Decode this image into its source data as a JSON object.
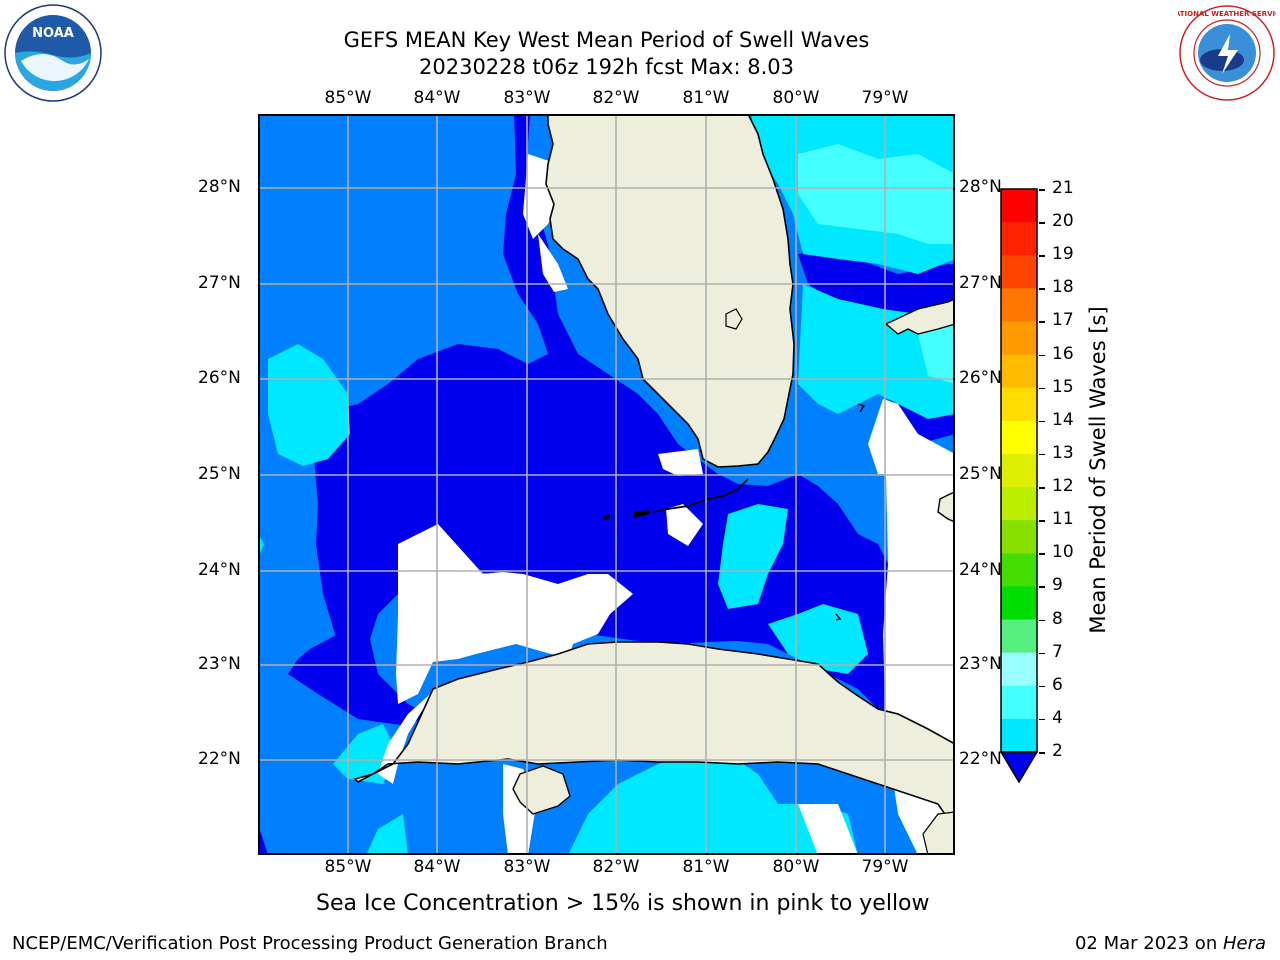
{
  "header": {
    "title_line1": "GEFS MEAN Key West Mean Period of Swell Waves",
    "title_line2": "20230228 t06z 192h fcst   Max: 8.03"
  },
  "logos": {
    "noaa_text": "NOAA",
    "nws_text": "NATIONAL WEATHER SERVICE"
  },
  "map": {
    "lon_labels": [
      "85°W",
      "84°W",
      "83°W",
      "82°W",
      "81°W",
      "80°W",
      "79°W"
    ],
    "lat_labels": [
      "28°N",
      "27°N",
      "26°N",
      "25°N",
      "24°N",
      "23°N",
      "22°N"
    ],
    "land_color": "#eeeedd",
    "grid_color": "#b0b0b0"
  },
  "colorbar": {
    "label": "Mean Period of Swell Waves [s]",
    "ticks": [
      "2",
      "4",
      "6",
      "7",
      "8",
      "9",
      "10",
      "11",
      "12",
      "13",
      "14",
      "15",
      "16",
      "17",
      "18",
      "19",
      "20",
      "21"
    ],
    "colors": [
      "#0000ee",
      "#0080ff",
      "#00e8ff",
      "#44ffff",
      "#99ffff",
      "#55f080",
      "#00dd00",
      "#44dd00",
      "#88e000",
      "#bbee00",
      "#ddee00",
      "#ffff00",
      "#ffdd00",
      "#ffbb00",
      "#ff9900",
      "#ff7700",
      "#ff4400",
      "#ff2200",
      "#ff0000"
    ]
  },
  "note": "Sea Ice Concentration > 15% is shown in pink to yellow",
  "footer": {
    "left": "NCEP/EMC/Verification Post Processing Product Generation Branch",
    "right_date": "02 Mar 2023 on ",
    "right_host": "Hera"
  }
}
